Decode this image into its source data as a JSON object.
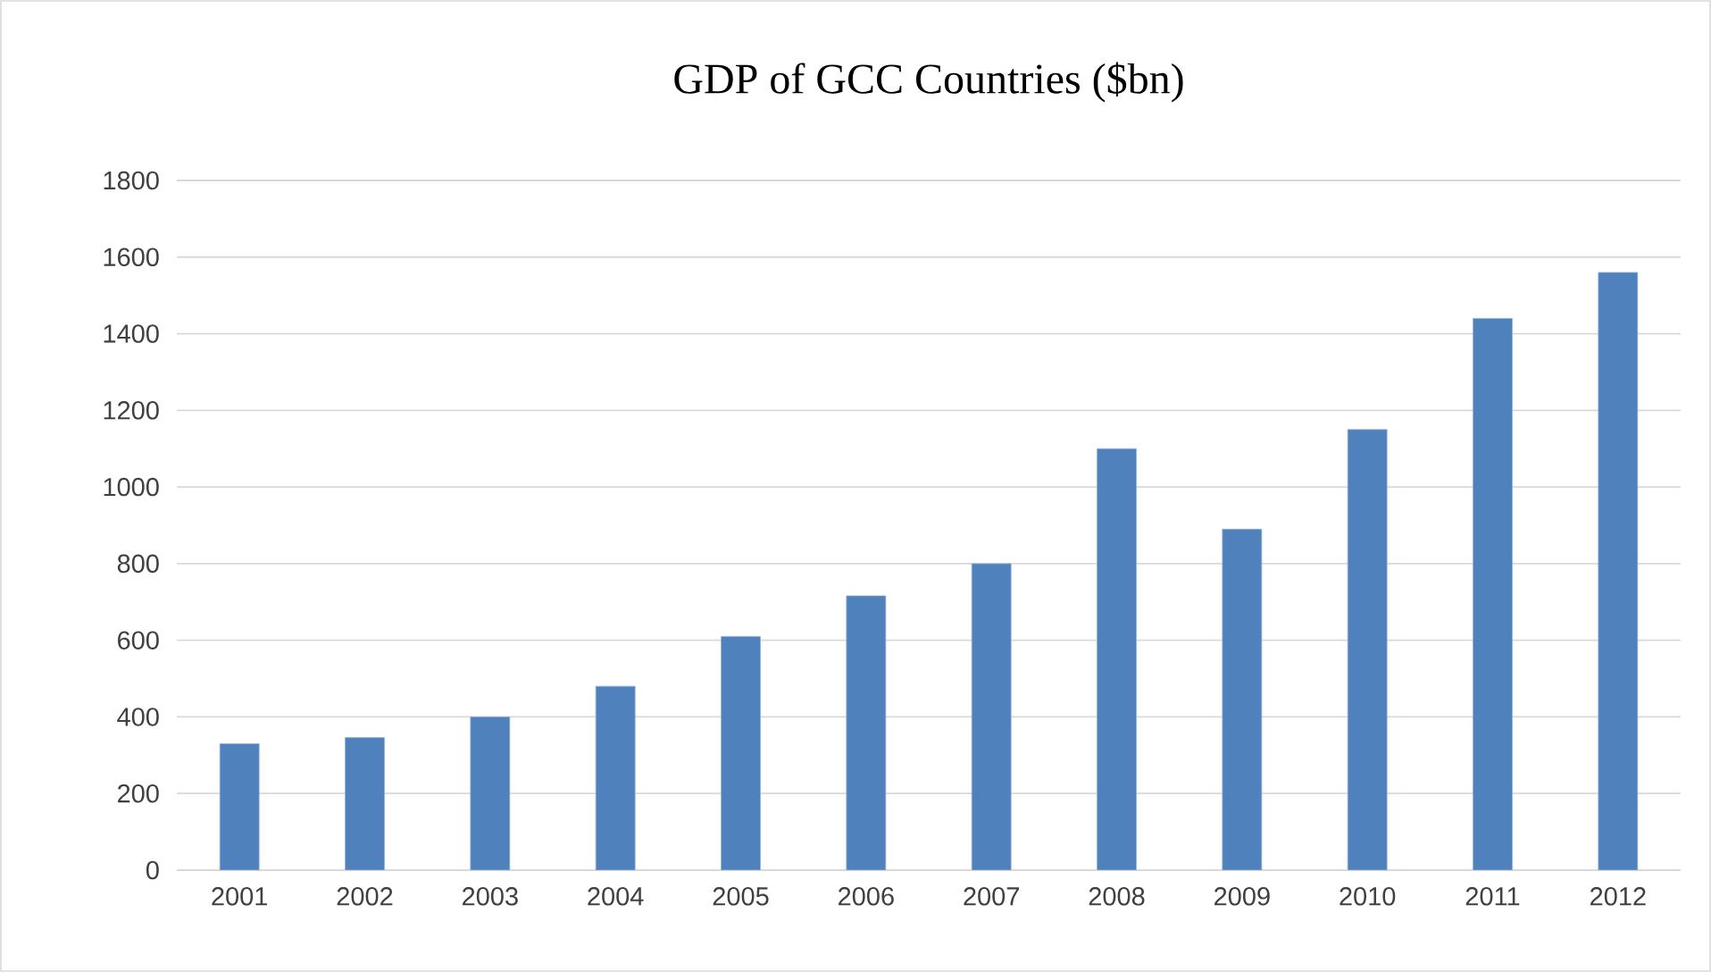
{
  "chart_data": {
    "type": "bar",
    "title": "GDP of GCC Countries ($bn)",
    "categories": [
      "2001",
      "2002",
      "2003",
      "2004",
      "2005",
      "2006",
      "2007",
      "2008",
      "2009",
      "2010",
      "2011",
      "2012"
    ],
    "values": [
      330,
      346,
      400,
      480,
      610,
      716,
      800,
      1100,
      890,
      1150,
      1440,
      1560
    ],
    "color": "#4f81bd",
    "ylim": [
      0,
      1800
    ],
    "yticks": [
      0,
      200,
      400,
      600,
      800,
      1000,
      1200,
      1400,
      1600,
      1800
    ],
    "grid": "y"
  }
}
